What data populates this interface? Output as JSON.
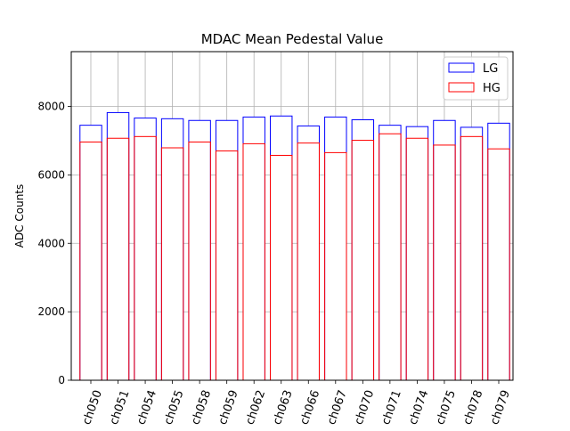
{
  "chart_data": {
    "type": "bar",
    "title": "MDAC Mean Pedestal Value",
    "xlabel": "",
    "ylabel": "ADC Counts",
    "categories": [
      "ch050",
      "ch051",
      "ch054",
      "ch055",
      "ch058",
      "ch059",
      "ch062",
      "ch063",
      "ch066",
      "ch067",
      "ch070",
      "ch071",
      "ch074",
      "ch075",
      "ch078",
      "ch079"
    ],
    "series": [
      {
        "name": "LG",
        "color": "#0000ff",
        "values": [
          7450,
          7820,
          7660,
          7640,
          7590,
          7590,
          7690,
          7720,
          7430,
          7690,
          7610,
          7450,
          7410,
          7590,
          7390,
          7510
        ]
      },
      {
        "name": "HG",
        "color": "#ff0000",
        "values": [
          6960,
          7070,
          7120,
          6790,
          6960,
          6700,
          6910,
          6570,
          6930,
          6650,
          7010,
          7200,
          7070,
          6870,
          7120,
          6760
        ]
      }
    ],
    "ylim": [
      0,
      9600
    ],
    "yticks": [
      0,
      2000,
      4000,
      6000,
      8000
    ],
    "ytick_labels": [
      "0",
      "2000",
      "4000",
      "6000",
      "8000"
    ],
    "grid": true,
    "legend_position": "top-right",
    "bar_fill": "none"
  }
}
